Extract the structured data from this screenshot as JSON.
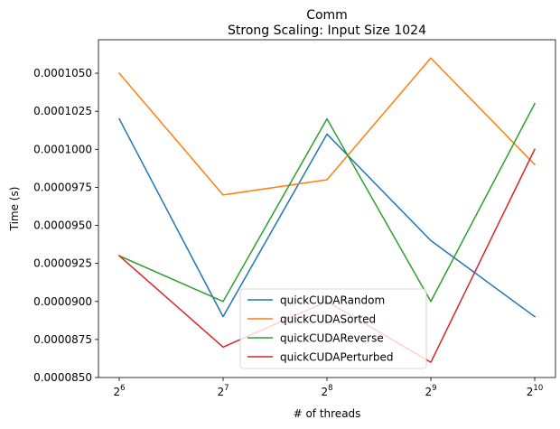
{
  "chart_data": {
    "type": "line",
    "title": "Comm",
    "subtitle": "Strong Scaling: Input Size 1024",
    "xlabel": "# of threads",
    "ylabel": "Time (s)",
    "x_scale": "log2",
    "x": [
      64,
      128,
      256,
      512,
      1024
    ],
    "x_tick_labels": [
      {
        "base": "2",
        "exp": "6"
      },
      {
        "base": "2",
        "exp": "7"
      },
      {
        "base": "2",
        "exp": "8"
      },
      {
        "base": "2",
        "exp": "9"
      },
      {
        "base": "2",
        "exp": "10"
      }
    ],
    "ylim": [
      8.5e-05,
      0.0001072
    ],
    "y_ticks": [
      8.5e-05,
      8.75e-05,
      9e-05,
      9.25e-05,
      9.5e-05,
      9.75e-05,
      0.0001,
      0.0001025,
      0.000105
    ],
    "y_tick_labels": [
      "0.0000850",
      "0.0000875",
      "0.0000900",
      "0.0000925",
      "0.0000950",
      "0.0000975",
      "0.0001000",
      "0.0001025",
      "0.0001050"
    ],
    "grid": false,
    "legend_position": "bottom-center",
    "series": [
      {
        "name": "quickCUDARandom",
        "color": "#1f77b4",
        "values": [
          0.000102,
          8.9e-05,
          0.000101,
          9.4e-05,
          8.9e-05
        ]
      },
      {
        "name": "quickCUDASorted",
        "color": "#ff7f0e",
        "values": [
          0.000105,
          9.7e-05,
          9.8e-05,
          0.000106,
          9.9e-05
        ]
      },
      {
        "name": "quickCUDAReverse",
        "color": "#2ca02c",
        "values": [
          9.3e-05,
          9e-05,
          0.000102,
          9e-05,
          0.000103
        ]
      },
      {
        "name": "quickCUDAPerturbed",
        "color": "#d62728",
        "values": [
          9.3e-05,
          8.7e-05,
          9e-05,
          8.6e-05,
          0.0001
        ]
      }
    ]
  }
}
